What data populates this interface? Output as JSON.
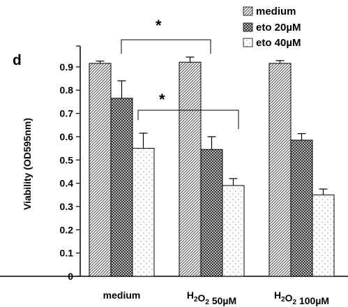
{
  "chart_data": {
    "type": "bar",
    "panel_label": "d",
    "ylabel": "Viability (OD595nm)",
    "ylim": [
      0,
      0.95
    ],
    "yticks": [
      "0",
      "0.1",
      "0.2",
      "0.3",
      "0.4",
      "0.5",
      "0.6",
      "0.7",
      "0.8",
      "0.9"
    ],
    "categories": [
      {
        "main": "medium",
        "sub": "",
        "rest": ""
      },
      {
        "main": "H",
        "sub": "2",
        "rest": "O",
        "sub2": "2",
        "tail": " 50µM"
      },
      {
        "main": "H",
        "sub": "2",
        "rest": "O",
        "sub2": "2",
        "tail": " 100µM"
      }
    ],
    "category_labels": [
      "medium",
      "H2O2 50µM",
      "H2O2 100µM"
    ],
    "series": [
      {
        "name": "medium",
        "pattern": "diagonal",
        "values": [
          0.915,
          0.92,
          0.915
        ],
        "errors": [
          0.01,
          0.022,
          0.012
        ]
      },
      {
        "name": "eto 20µM",
        "pattern": "checker",
        "values": [
          0.765,
          0.545,
          0.585
        ],
        "errors": [
          0.075,
          0.055,
          0.028
        ]
      },
      {
        "name": "eto 40µM",
        "pattern": "dots",
        "values": [
          0.55,
          0.39,
          0.35
        ],
        "errors": [
          0.065,
          0.03,
          0.025
        ]
      }
    ],
    "annotations": [
      "*",
      "*"
    ],
    "legend_position": "top-right"
  }
}
